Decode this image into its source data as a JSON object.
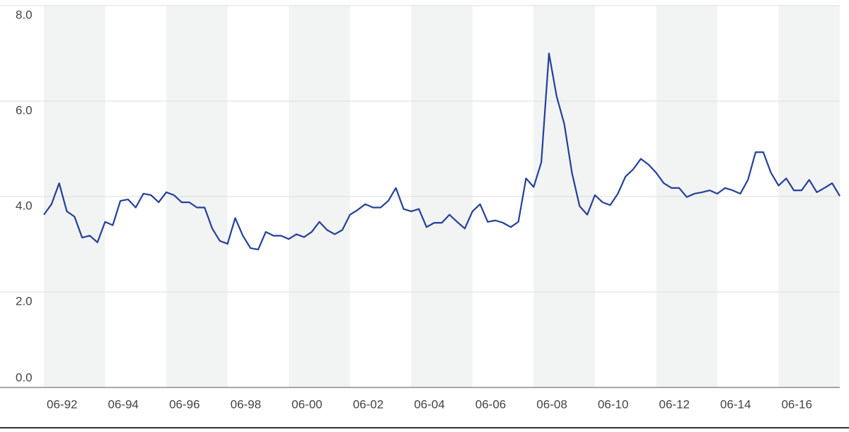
{
  "chart_data": {
    "type": "line",
    "x": [
      "06-92",
      "09-92",
      "12-92",
      "03-93",
      "06-93",
      "09-93",
      "12-93",
      "03-94",
      "06-94",
      "09-94",
      "12-94",
      "03-95",
      "06-95",
      "09-95",
      "12-95",
      "03-96",
      "06-96",
      "09-96",
      "12-96",
      "03-97",
      "06-97",
      "09-97",
      "12-97",
      "03-98",
      "06-98",
      "09-98",
      "12-98",
      "03-99",
      "06-99",
      "09-99",
      "12-99",
      "03-00",
      "06-00",
      "09-00",
      "12-00",
      "03-01",
      "06-01",
      "09-01",
      "12-01",
      "03-02",
      "06-02",
      "09-02",
      "12-02",
      "03-03",
      "06-03",
      "09-03",
      "12-03",
      "03-04",
      "06-04",
      "09-04",
      "12-04",
      "03-05",
      "06-05",
      "09-05",
      "12-05",
      "03-06",
      "06-06",
      "09-06",
      "12-06",
      "03-07",
      "06-07",
      "09-07",
      "12-07",
      "03-08",
      "06-08",
      "09-08",
      "12-08",
      "03-09",
      "06-09",
      "09-09",
      "12-09",
      "03-10",
      "06-10",
      "09-10",
      "12-10",
      "03-11",
      "06-11",
      "09-11",
      "12-11",
      "03-12",
      "06-12",
      "09-12",
      "12-12",
      "03-13",
      "06-13",
      "09-13",
      "12-13",
      "03-14",
      "06-14",
      "09-14",
      "12-14",
      "03-15",
      "06-15",
      "09-15",
      "12-15",
      "03-16",
      "06-16",
      "09-16",
      "12-16",
      "03-17",
      "06-17",
      "09-17",
      "12-17",
      "03-18",
      "06-18"
    ],
    "series": [
      {
        "color": "#23409a",
        "values": [
          3.62,
          3.84,
          4.28,
          3.69,
          3.58,
          3.14,
          3.18,
          3.04,
          3.47,
          3.4,
          3.91,
          3.94,
          3.77,
          4.06,
          4.03,
          3.88,
          4.09,
          4.03,
          3.88,
          3.88,
          3.77,
          3.77,
          3.33,
          3.07,
          3.01,
          3.55,
          3.18,
          2.92,
          2.89,
          3.26,
          3.18,
          3.18,
          3.11,
          3.21,
          3.15,
          3.26,
          3.47,
          3.3,
          3.21,
          3.3,
          3.62,
          3.72,
          3.84,
          3.77,
          3.77,
          3.91,
          4.18,
          3.74,
          3.69,
          3.74,
          3.36,
          3.45,
          3.45,
          3.62,
          3.47,
          3.33,
          3.69,
          3.84,
          3.47,
          3.5,
          3.45,
          3.36,
          3.47,
          4.38,
          4.2,
          4.72,
          7.0,
          6.1,
          5.52,
          4.5,
          3.8,
          3.62,
          4.03,
          3.88,
          3.82,
          4.06,
          4.42,
          4.57,
          4.79,
          4.67,
          4.5,
          4.28,
          4.18,
          4.18,
          3.99,
          4.06,
          4.09,
          4.13,
          4.06,
          4.18,
          4.13,
          4.06,
          4.35,
          4.93,
          4.93,
          4.5,
          4.23,
          4.38,
          4.13,
          4.13,
          4.35,
          4.09,
          4.18,
          4.28,
          4.01
        ]
      }
    ],
    "xlim": [
      "06-92",
      "06-18"
    ],
    "xticks": [
      "06-92",
      "06-94",
      "06-96",
      "06-98",
      "06-00",
      "06-02",
      "06-04",
      "06-06",
      "06-08",
      "06-10",
      "06-12",
      "06-14",
      "06-16"
    ],
    "ylim": [
      0,
      8
    ],
    "yticks": [
      {
        "value": 0,
        "label": "0.0"
      },
      {
        "value": 2,
        "label": "2.0"
      },
      {
        "value": 4,
        "label": "4.0"
      },
      {
        "value": 6,
        "label": "6.0"
      },
      {
        "value": 8,
        "label": "8.0"
      }
    ],
    "grid": true
  }
}
